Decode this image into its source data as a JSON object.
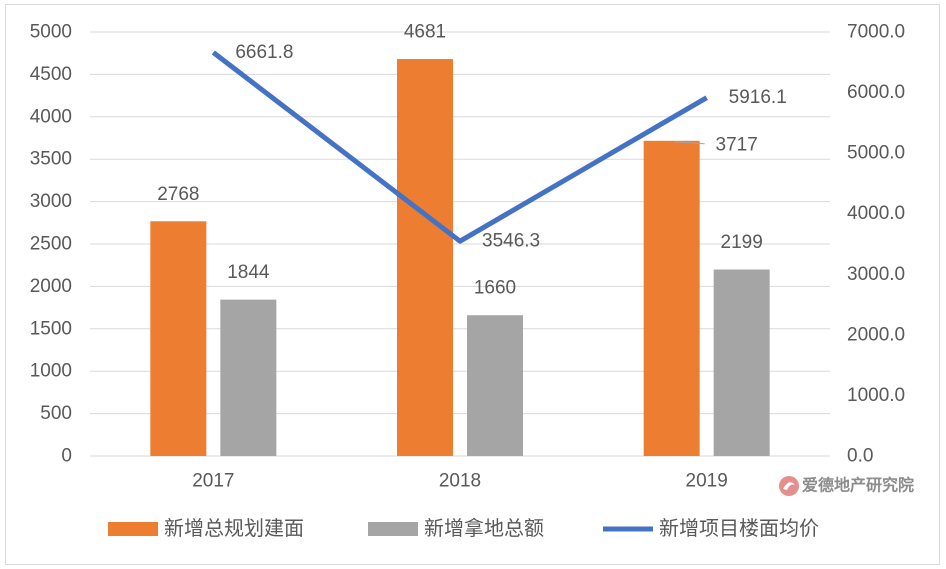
{
  "chart_data": {
    "type": "bar",
    "categories": [
      "2017",
      "2018",
      "2019"
    ],
    "series": [
      {
        "name": "新增总规划建面",
        "type": "bar",
        "axis": "left",
        "color": "#ED7D31",
        "values": [
          2768,
          4681,
          3717
        ]
      },
      {
        "name": "新增拿地总额",
        "type": "bar",
        "axis": "left",
        "color": "#A5A5A5",
        "values": [
          1844,
          1660,
          2199
        ]
      },
      {
        "name": "新增项目楼面均价",
        "type": "line",
        "axis": "right",
        "color": "#4472C4",
        "values": [
          6661.8,
          3546.3,
          5916.1
        ]
      }
    ],
    "y_left": {
      "min": 0,
      "max": 5000,
      "ticks": [
        "0",
        "500",
        "1000",
        "1500",
        "2000",
        "2500",
        "3000",
        "3500",
        "4000",
        "4500",
        "5000"
      ]
    },
    "y_right": {
      "min": 0,
      "max": 7000,
      "ticks": [
        "0.0",
        "1000.0",
        "2000.0",
        "3000.0",
        "4000.0",
        "5000.0",
        "6000.0",
        "7000.0"
      ]
    },
    "data_labels": true,
    "grid": true,
    "legend_position": "bottom"
  },
  "watermark": {
    "text": "爱德地产研究院",
    "icon": "logo-icon"
  },
  "colors": {
    "text": "#595959",
    "grid": "#D9D9D9",
    "border": "#D9D9D9",
    "leader_line": "#A6A6A6",
    "logo": "#E07A7A"
  }
}
